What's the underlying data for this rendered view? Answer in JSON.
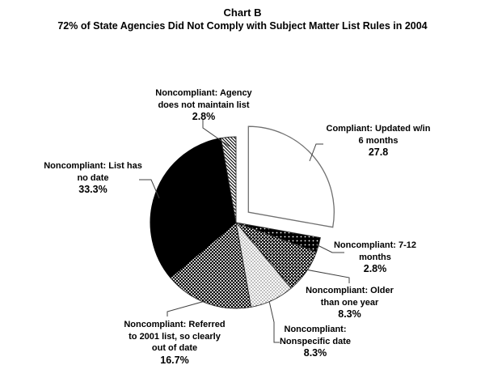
{
  "chart_data": {
    "type": "pie",
    "title": "Chart B",
    "subtitle": "72% of State Agencies Did Not Comply with Subject Matter List Rules in 2004",
    "legend_position": "none",
    "labels_style": "callout-labels-with-leader-lines",
    "slices": [
      {
        "id": "compliant-updated-6mo",
        "name": "Compliant: Updated w/in 6 months",
        "value": 27.8,
        "value_label": "27.8",
        "label_lines": [
          "Compliant: Updated w/in",
          "6 months"
        ],
        "pattern": "solid-white",
        "exploded": true
      },
      {
        "id": "noncompliant-7-12-months",
        "name": "Noncompliant: 7-12 months",
        "value": 2.8,
        "value_label": "2.8%",
        "label_lines": [
          "Noncompliant: 7-12",
          "months"
        ],
        "pattern": "white-dots-on-black",
        "exploded": false
      },
      {
        "id": "noncompliant-older-than-one-year",
        "name": "Noncompliant: Older than one year",
        "value": 8.3,
        "value_label": "8.3%",
        "label_lines": [
          "Noncompliant: Older",
          "than one year"
        ],
        "pattern": "dense-black-dots",
        "exploded": false
      },
      {
        "id": "noncompliant-nonspecific-date",
        "name": "Noncompliant: Nonspecific date",
        "value": 8.3,
        "value_label": "8.3%",
        "label_lines": [
          "Noncompliant:",
          "Nonspecific date"
        ],
        "pattern": "light-gray-dots",
        "exploded": false
      },
      {
        "id": "noncompliant-referred-2001-list",
        "name": "Noncompliant: Referred to 2001 list, so clearly out of date",
        "value": 16.7,
        "value_label": "16.7%",
        "label_lines": [
          "Noncompliant: Referred",
          "to 2001 list, so clearly",
          "out of date"
        ],
        "pattern": "gray-checker",
        "exploded": false
      },
      {
        "id": "noncompliant-list-has-no-date",
        "name": "Noncompliant: List has no date",
        "value": 33.3,
        "value_label": "33.3%",
        "label_lines": [
          "Noncompliant: List has",
          "no date"
        ],
        "pattern": "solid-black",
        "exploded": false
      },
      {
        "id": "noncompliant-agency-no-list",
        "name": "Noncompliant: Agency does not maintain list",
        "value": 2.8,
        "value_label": "2.8%",
        "label_lines": [
          "Noncompliant: Agency",
          "does not maintain list"
        ],
        "pattern": "diagonal-hatch",
        "exploded": false
      }
    ],
    "start_angle_deg": 0,
    "direction": "clockwise",
    "colors": {
      "foreground": "#000000",
      "background": "#ffffff",
      "leader_line": "#404040",
      "white_slice_outline": "#707070"
    }
  }
}
